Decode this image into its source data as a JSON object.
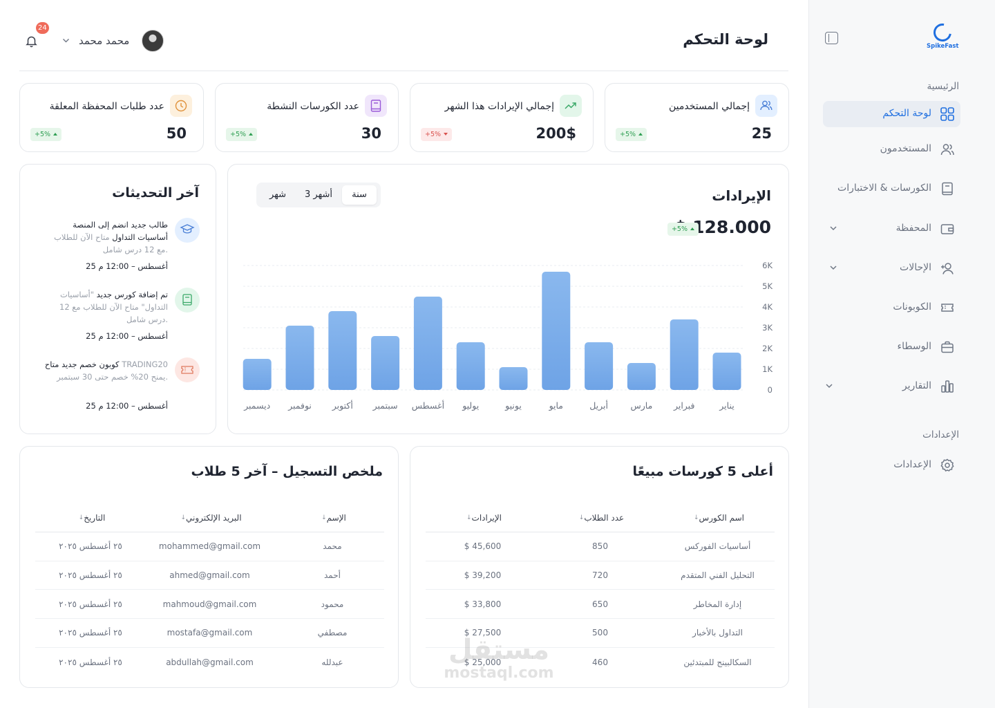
{
  "brand": {
    "name": "SpikeFast",
    "accent": "#1f6fe0"
  },
  "sidebar": {
    "section_main": "الرئيسية",
    "section_settings": "الإعدادات",
    "items": [
      {
        "label": "لوحة التحكم",
        "icon": "grid-icon",
        "active": true
      },
      {
        "label": "المستخدمون",
        "icon": "users-icon"
      },
      {
        "label": "الكورسات & الاختبارات",
        "icon": "book-icon"
      },
      {
        "label": "المحفظة",
        "icon": "wallet-icon"
      },
      {
        "label": "الإحالات",
        "icon": "user-plus-icon"
      },
      {
        "label": "الكوبونات",
        "icon": "ticket-icon"
      },
      {
        "label": "الوسطاء",
        "icon": "briefcase-icon"
      },
      {
        "label": "التقارير",
        "icon": "bar-chart-icon"
      }
    ],
    "settings_item": {
      "label": "الإعدادات",
      "icon": "gear-icon"
    }
  },
  "header": {
    "title": "لوحة التحكم",
    "user_name": "محمد محمد",
    "notifications": "24"
  },
  "stats": [
    {
      "label": "إجمالي المستخدمين",
      "value": "25",
      "delta": "+5%",
      "trend": "up",
      "icon": "users-icon",
      "icon_bg": "#e3efff",
      "icon_color": "#4a7fd6"
    },
    {
      "label": "إجمالي الإيرادات هذا الشهر",
      "value": "200$",
      "delta": "+5%",
      "trend": "down",
      "icon": "trend-up-icon",
      "icon_bg": "#e3f6ea",
      "icon_color": "#3aa868"
    },
    {
      "label": "عدد الكورسات النشطة",
      "value": "30",
      "delta": "+5%",
      "trend": "up",
      "icon": "book-icon",
      "icon_bg": "#f0e6fb",
      "icon_color": "#9a5ad8"
    },
    {
      "label": "عدد طلبات المحفظة المعلقة",
      "value": "50",
      "delta": "+5%",
      "trend": "up",
      "icon": "clock-icon",
      "icon_bg": "#fdf0dd",
      "icon_color": "#e0913a"
    }
  ],
  "revenue": {
    "title": "الإيرادات",
    "total": "$ 128.000",
    "delta": "+5%",
    "periods": [
      "سنة",
      "3 أشهر",
      "شهر"
    ],
    "active_period": "سنة"
  },
  "chart_data": {
    "type": "bar",
    "categories": [
      "يناير",
      "فبراير",
      "مارس",
      "أبريل",
      "مايو",
      "يونيو",
      "يوليو",
      "أغسطس",
      "سبتمبر",
      "أكتوبر",
      "نوفمبر",
      "ديسمبر"
    ],
    "values": [
      1800,
      3400,
      1300,
      2300,
      5700,
      1100,
      2300,
      4500,
      2600,
      3800,
      3100,
      1500
    ],
    "yticks": [
      "0",
      "1K",
      "2K",
      "3K",
      "4K",
      "5K",
      "6K"
    ],
    "ylim": [
      0,
      6000
    ],
    "bar_color": "#7aaeea",
    "grid": true
  },
  "updates": {
    "title": "آخر التحديثات",
    "items": [
      {
        "pre": "طالب جديد انضم إلى المنصة",
        "strong": "أساسيات التداول",
        "post": "متاح الآن للطلاب مع 12 درس شامل.",
        "strong_first": false,
        "time": "25 أغسطس – 12:00 م",
        "icon": "graduation-cap-icon",
        "bg": "#e3efff",
        "color": "#4a7fd6"
      },
      {
        "pre": "تم إضافة كورس جديد",
        "strong": "",
        "post": "\"أساسيات التداول\" متاح الآن للطلاب مع 12 درس شامل.",
        "time": "25 أغسطس – 12:00 م",
        "icon": "book-icon",
        "bg": "#e2f6ea",
        "color": "#3aa868"
      },
      {
        "pre": "كوبون خصم جديد متاح",
        "strong": "",
        "post": "TRADING20 يمنح 20% خصم حتى 30 سبتمبر.",
        "time": "25 أغسطس – 12:00 م",
        "icon": "ticket-icon",
        "bg": "#fde7e3",
        "color": "#e07a5f"
      }
    ]
  },
  "top_courses": {
    "title": "أعلى 5 كورسات مبيعًا",
    "columns": [
      "اسم الكورس",
      "عدد الطلاب",
      "الإيرادات"
    ],
    "rows": [
      [
        "أساسيات الفوركس",
        "850",
        "$ 45,600"
      ],
      [
        "التحليل الفني المتقدم",
        "720",
        "$ 39,200"
      ],
      [
        "إدارة المخاطر",
        "650",
        "$ 33,800"
      ],
      [
        "التداول بالأخبار",
        "500",
        "$ 27,500"
      ],
      [
        "السكالبينج للمبتدئين",
        "460",
        "$ 25,000"
      ]
    ]
  },
  "registrations": {
    "title": "ملخص التسجيل – آخر 5 طلاب",
    "columns": [
      "الإسم",
      "البريد الإلكتروني",
      "التاريخ"
    ],
    "rows": [
      [
        "محمد",
        "mohammed@gmail.com",
        "٢٥ أغسطس ٢٠٢٥"
      ],
      [
        "أحمد",
        "ahmed@gmail.com",
        "٢٥ أغسطس ٢٠٢٥"
      ],
      [
        "محمود",
        "mahmoud@gmail.com",
        "٢٥ أغسطس ٢٠٢٥"
      ],
      [
        "مصطفي",
        "mostafa@gmail.com",
        "٢٥ أغسطس ٢٠٢٥"
      ],
      [
        "عبدلله",
        "abdullah@gmail.com",
        "٢٥ أغسطس ٢٠٢٥"
      ]
    ]
  },
  "watermark": {
    "arabic": "مستقل",
    "latin": "mostaql.com"
  }
}
